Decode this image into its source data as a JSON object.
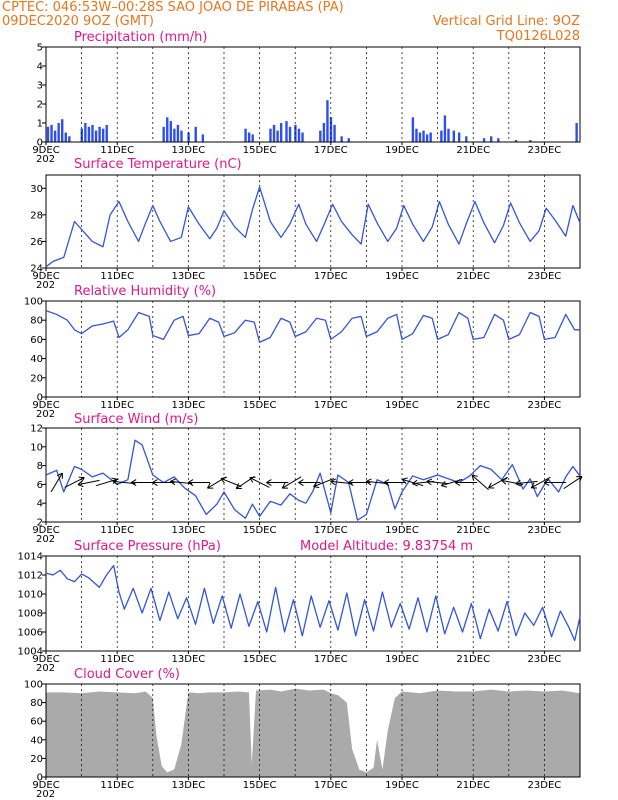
{
  "header": {
    "line1_left": "CPTEC:   046:53W–00:28S   SAO JOAO DE PIRABAS (PA)",
    "line2_left": "09DEC2020 9OZ (GMT)",
    "line2_right": "Vertical Grid Line: 9OZ",
    "line3_right": "TQ0126L028"
  },
  "model_altitude": "Model Altitude:  9.83754  m",
  "x_ticks": [
    "9DEC",
    "11DEC",
    "13DEC",
    "15DEC",
    "17DEC",
    "19DEC",
    "21DEC",
    "23DEC"
  ],
  "x_year_fragment": "202",
  "colors": {
    "line": "#3355dd",
    "bar": "#2d4ff0",
    "cloud": "#aaaaaa",
    "header": "#e8761e",
    "title": "#e0188c"
  },
  "chart_data": [
    {
      "type": "bar",
      "title": "Precipitation  (mm/h)",
      "ylim": [
        0,
        5
      ],
      "yticks": [
        "0",
        "1",
        "2",
        "3",
        "4",
        "5"
      ],
      "x_range_days": [
        9,
        24
      ],
      "values": [
        [
          9.05,
          0.8
        ],
        [
          9.15,
          0.9
        ],
        [
          9.25,
          0.6
        ],
        [
          9.35,
          1.0
        ],
        [
          9.45,
          1.2
        ],
        [
          9.55,
          0.5
        ],
        [
          9.65,
          0.3
        ],
        [
          10.0,
          0.7
        ],
        [
          10.1,
          1.0
        ],
        [
          10.2,
          0.8
        ],
        [
          10.3,
          0.9
        ],
        [
          10.4,
          0.6
        ],
        [
          10.5,
          0.8
        ],
        [
          10.6,
          0.7
        ],
        [
          10.7,
          0.9
        ],
        [
          12.3,
          0.8
        ],
        [
          12.4,
          1.3
        ],
        [
          12.5,
          1.1
        ],
        [
          12.6,
          0.7
        ],
        [
          12.7,
          0.9
        ],
        [
          12.8,
          0.6
        ],
        [
          13.0,
          0.5
        ],
        [
          13.2,
          0.8
        ],
        [
          13.4,
          0.4
        ],
        [
          14.6,
          0.7
        ],
        [
          14.7,
          0.5
        ],
        [
          14.8,
          0.4
        ],
        [
          15.3,
          0.7
        ],
        [
          15.4,
          0.9
        ],
        [
          15.5,
          0.6
        ],
        [
          15.6,
          1.0
        ],
        [
          15.75,
          1.1
        ],
        [
          15.85,
          0.8
        ],
        [
          16.0,
          0.9
        ],
        [
          16.1,
          0.7
        ],
        [
          16.2,
          0.5
        ],
        [
          16.7,
          0.6
        ],
        [
          16.8,
          1.0
        ],
        [
          16.9,
          2.2
        ],
        [
          17.0,
          1.3
        ],
        [
          17.1,
          0.9
        ],
        [
          17.3,
          0.3
        ],
        [
          17.5,
          0.2
        ],
        [
          19.3,
          1.3
        ],
        [
          19.4,
          0.7
        ],
        [
          19.5,
          0.5
        ],
        [
          19.6,
          0.6
        ],
        [
          19.7,
          0.4
        ],
        [
          19.8,
          0.5
        ],
        [
          20.1,
          0.6
        ],
        [
          20.2,
          1.4
        ],
        [
          20.3,
          0.7
        ],
        [
          20.45,
          0.6
        ],
        [
          20.6,
          0.5
        ],
        [
          20.8,
          0.3
        ],
        [
          21.3,
          0.2
        ],
        [
          21.5,
          0.3
        ],
        [
          21.7,
          0.2
        ],
        [
          22.2,
          0.1
        ],
        [
          22.6,
          0.1
        ],
        [
          23.9,
          1.0
        ]
      ]
    },
    {
      "type": "line",
      "title": "Surface Temperature (nC)",
      "ylim": [
        24,
        31
      ],
      "yticks": [
        "24",
        "26",
        "28",
        "30"
      ],
      "x_range_days": [
        9,
        24
      ],
      "series": [
        {
          "x": [
            9.0,
            9.2,
            9.5,
            9.8,
            10.1,
            10.3,
            10.6,
            10.8,
            11.05,
            11.3,
            11.6,
            11.8,
            12.0,
            12.2,
            12.5,
            12.8,
            13.0,
            13.3,
            13.6,
            13.8,
            14.0,
            14.3,
            14.6,
            14.8,
            15.0,
            15.3,
            15.6,
            15.85,
            16.1,
            16.3,
            16.6,
            16.8,
            17.05,
            17.3,
            17.6,
            17.85,
            18.05,
            18.3,
            18.6,
            18.85,
            19.05,
            19.3,
            19.6,
            19.85,
            20.05,
            20.3,
            20.6,
            20.8,
            21.05,
            21.3,
            21.6,
            21.85,
            22.05,
            22.3,
            22.6,
            22.85,
            23.05,
            23.3,
            23.6,
            23.8,
            24.0
          ],
          "y": [
            24.1,
            24.5,
            24.8,
            27.5,
            26.6,
            26.0,
            25.6,
            28.0,
            29.0,
            27.5,
            26.0,
            27.4,
            28.7,
            27.5,
            26.0,
            26.3,
            28.6,
            27.3,
            26.2,
            27.0,
            28.3,
            27.1,
            26.3,
            28.4,
            30.1,
            27.5,
            26.3,
            27.3,
            28.8,
            27.3,
            26.0,
            27.2,
            28.8,
            27.5,
            26.5,
            25.8,
            28.8,
            27.4,
            26.0,
            27.0,
            28.7,
            27.3,
            26.0,
            27.1,
            29.0,
            27.3,
            25.8,
            27.3,
            29.0,
            27.4,
            25.9,
            27.2,
            28.9,
            27.4,
            26.0,
            26.8,
            28.5,
            27.6,
            26.4,
            28.7,
            27.4
          ]
        }
      ]
    },
    {
      "type": "line",
      "title": "Relative Humidity (%)",
      "ylim": [
        0,
        100
      ],
      "yticks": [
        "0",
        "20",
        "40",
        "60",
        "80",
        "100"
      ],
      "x_range_days": [
        9,
        24
      ],
      "series": [
        {
          "x": [
            9.0,
            9.3,
            9.6,
            9.8,
            10.0,
            10.3,
            10.6,
            10.9,
            11.05,
            11.3,
            11.6,
            11.9,
            12.0,
            12.3,
            12.6,
            12.85,
            13.0,
            13.3,
            13.6,
            13.85,
            14.0,
            14.3,
            14.6,
            14.85,
            15.0,
            15.3,
            15.6,
            15.85,
            16.0,
            16.3,
            16.6,
            16.85,
            17.0,
            17.3,
            17.6,
            17.85,
            18.0,
            18.3,
            18.6,
            18.85,
            19.0,
            19.3,
            19.6,
            19.85,
            20.0,
            20.3,
            20.6,
            20.85,
            21.0,
            21.3,
            21.6,
            21.85,
            22.0,
            22.3,
            22.6,
            22.85,
            23.0,
            23.3,
            23.6,
            23.85,
            24.0
          ],
          "y": [
            90,
            86,
            80,
            70,
            66,
            74,
            76,
            79,
            62,
            70,
            88,
            84,
            64,
            60,
            80,
            84,
            64,
            66,
            82,
            78,
            63,
            67,
            80,
            78,
            57,
            62,
            82,
            78,
            63,
            68,
            82,
            80,
            60,
            68,
            82,
            84,
            63,
            68,
            82,
            86,
            60,
            66,
            85,
            82,
            60,
            65,
            88,
            82,
            60,
            62,
            86,
            80,
            60,
            65,
            88,
            84,
            60,
            62,
            86,
            70,
            70
          ]
        }
      ]
    },
    {
      "type": "line",
      "title": "Surface Wind  (m/s)",
      "ylim": [
        2,
        12
      ],
      "yticks": [
        "2",
        "4",
        "6",
        "8",
        "10",
        "12"
      ],
      "x_range_days": [
        9,
        24
      ],
      "series": [
        {
          "x": [
            9.0,
            9.3,
            9.5,
            9.8,
            10.0,
            10.3,
            10.6,
            11.0,
            11.3,
            11.5,
            11.7,
            12.0,
            12.3,
            12.6,
            12.9,
            13.2,
            13.5,
            13.8,
            14.0,
            14.3,
            14.6,
            14.8,
            15.0,
            15.3,
            15.6,
            15.85,
            16.1,
            16.3,
            16.5,
            16.7,
            17.0,
            17.2,
            17.5,
            17.75,
            18.0,
            18.3,
            18.6,
            18.8,
            19.0,
            19.3,
            19.6,
            20.0,
            20.3,
            20.6,
            20.9,
            21.2,
            21.5,
            21.8,
            22.1,
            22.4,
            22.6,
            22.8,
            23.1,
            23.4,
            23.6,
            23.8,
            24.0
          ],
          "y": [
            7.0,
            7.5,
            5.2,
            7.9,
            7.6,
            6.8,
            7.2,
            6.0,
            6.5,
            10.7,
            10.2,
            7.0,
            6.2,
            6.8,
            5.6,
            4.8,
            2.8,
            3.9,
            5.2,
            3.3,
            2.4,
            3.9,
            2.6,
            4.2,
            3.8,
            5.0,
            4.3,
            4.0,
            5.3,
            7.2,
            3.0,
            7.0,
            6.2,
            2.2,
            2.8,
            6.5,
            6.0,
            3.4,
            5.2,
            6.9,
            6.5,
            7.0,
            6.6,
            6.2,
            6.9,
            8.0,
            7.6,
            6.5,
            8.1,
            5.5,
            6.6,
            4.7,
            6.6,
            5.2,
            6.8,
            7.9,
            6.9
          ]
        }
      ],
      "arrows": [
        {
          "day": 9.3,
          "u": 0.6,
          "v": 1.0
        },
        {
          "day": 9.8,
          "u": 1.0,
          "v": 0.5
        },
        {
          "day": 10.2,
          "u": -1.0,
          "v": -0.2
        },
        {
          "day": 10.7,
          "u": 1.0,
          "v": 0.3
        },
        {
          "day": 11.2,
          "u": -1.0,
          "v": 0.1
        },
        {
          "day": 11.7,
          "u": -1.0,
          "v": 0.0
        },
        {
          "day": 12.3,
          "u": -1.0,
          "v": 0.0
        },
        {
          "day": 12.8,
          "u": -1.0,
          "v": 0.1
        },
        {
          "day": 13.3,
          "u": -1.0,
          "v": 0.0
        },
        {
          "day": 13.8,
          "u": -1.0,
          "v": -0.6
        },
        {
          "day": 14.2,
          "u": -1.0,
          "v": 0.4
        },
        {
          "day": 14.6,
          "u": -0.9,
          "v": -0.6
        },
        {
          "day": 15.0,
          "u": -1.0,
          "v": 0.5
        },
        {
          "day": 15.5,
          "u": -1.0,
          "v": 0.0
        },
        {
          "day": 15.9,
          "u": -1.0,
          "v": -0.6
        },
        {
          "day": 16.4,
          "u": -1.0,
          "v": 0.0
        },
        {
          "day": 16.8,
          "u": -1.0,
          "v": -0.4
        },
        {
          "day": 17.3,
          "u": -1.0,
          "v": 0.1
        },
        {
          "day": 17.8,
          "u": -1.0,
          "v": 0.0
        },
        {
          "day": 18.3,
          "u": -1.0,
          "v": 0.1
        },
        {
          "day": 18.8,
          "u": -1.0,
          "v": 0.0
        },
        {
          "day": 19.3,
          "u": -1.0,
          "v": 0.3
        },
        {
          "day": 19.6,
          "u": -1.0,
          "v": -0.1
        },
        {
          "day": 20.0,
          "u": -1.0,
          "v": 0.1
        },
        {
          "day": 20.4,
          "u": -1.0,
          "v": -0.3
        },
        {
          "day": 20.8,
          "u": -1.0,
          "v": 0.0
        },
        {
          "day": 21.2,
          "u": -0.8,
          "v": 0.7
        },
        {
          "day": 21.7,
          "u": -0.9,
          "v": -0.5
        },
        {
          "day": 22.1,
          "u": -1.0,
          "v": 0.2
        },
        {
          "day": 22.5,
          "u": -1.0,
          "v": -0.1
        },
        {
          "day": 22.9,
          "u": -0.9,
          "v": -0.5
        },
        {
          "day": 23.3,
          "u": -1.0,
          "v": 0.0
        },
        {
          "day": 23.8,
          "u": 0.9,
          "v": 0.6
        }
      ]
    },
    {
      "type": "line",
      "title": "Surface Pressure (hPa)",
      "ylim": [
        1004,
        1014
      ],
      "yticks": [
        "1004",
        "1006",
        "1008",
        "1010",
        "1012",
        "1014"
      ],
      "x_range_days": [
        9,
        24
      ],
      "series": [
        {
          "x": [
            9.0,
            9.2,
            9.4,
            9.6,
            9.8,
            10.0,
            10.2,
            10.5,
            10.7,
            10.9,
            11.05,
            11.2,
            11.45,
            11.7,
            11.95,
            12.2,
            12.45,
            12.7,
            12.95,
            13.2,
            13.45,
            13.7,
            13.95,
            14.2,
            14.45,
            14.7,
            14.95,
            15.2,
            15.45,
            15.7,
            15.95,
            16.2,
            16.45,
            16.7,
            16.95,
            17.2,
            17.45,
            17.7,
            17.95,
            18.2,
            18.45,
            18.7,
            18.95,
            19.2,
            19.45,
            19.7,
            19.95,
            20.2,
            20.45,
            20.7,
            20.95,
            21.2,
            21.45,
            21.7,
            21.95,
            22.2,
            22.45,
            22.7,
            22.95,
            23.2,
            23.45,
            23.7,
            23.85,
            24.0
          ],
          "y": [
            1012.2,
            1012.0,
            1012.5,
            1011.6,
            1011.3,
            1012.1,
            1011.7,
            1010.7,
            1012.0,
            1013.0,
            1010.2,
            1008.4,
            1010.6,
            1008.0,
            1010.6,
            1007.2,
            1010.2,
            1007.4,
            1009.6,
            1006.8,
            1010.6,
            1006.9,
            1009.8,
            1006.4,
            1010.0,
            1006.6,
            1009.2,
            1006.0,
            1010.7,
            1006.0,
            1009.4,
            1005.6,
            1009.8,
            1006.5,
            1009.3,
            1006.2,
            1010.1,
            1005.6,
            1009.4,
            1006.1,
            1010.2,
            1006.5,
            1009.0,
            1006.3,
            1009.6,
            1006.0,
            1009.8,
            1005.8,
            1008.6,
            1006.0,
            1009.0,
            1005.3,
            1008.4,
            1006.1,
            1009.2,
            1005.6,
            1008.0,
            1006.7,
            1008.6,
            1005.5,
            1008.2,
            1006.4,
            1005.1,
            1007.6
          ]
        }
      ]
    },
    {
      "type": "area",
      "title": "Cloud Cover (%)",
      "ylim": [
        0,
        100
      ],
      "yticks": [
        "0",
        "20",
        "40",
        "60",
        "80",
        "100"
      ],
      "x_range_days": [
        9,
        24
      ],
      "series": [
        {
          "x": [
            9.0,
            9.5,
            10.0,
            10.5,
            11.0,
            11.5,
            11.8,
            12.0,
            12.1,
            12.25,
            12.4,
            12.6,
            12.8,
            13.0,
            13.3,
            13.6,
            14.0,
            14.4,
            14.7,
            14.78,
            14.9,
            15.3,
            15.6,
            16.0,
            16.4,
            16.8,
            17.0,
            17.2,
            17.45,
            17.6,
            17.8,
            18.0,
            18.2,
            18.3,
            18.45,
            18.6,
            18.8,
            19.0,
            19.5,
            20.0,
            20.5,
            21.0,
            21.5,
            22.0,
            22.5,
            23.0,
            23.5,
            24.0
          ],
          "y": [
            91,
            91,
            90,
            92,
            91,
            90,
            92,
            85,
            45,
            12,
            5,
            8,
            35,
            91,
            90,
            91,
            91,
            92,
            91,
            14,
            93,
            94,
            92,
            95,
            93,
            94,
            90,
            88,
            80,
            30,
            8,
            5,
            10,
            40,
            8,
            50,
            85,
            92,
            90,
            93,
            92,
            92,
            94,
            92,
            93,
            92,
            93,
            90
          ]
        }
      ]
    }
  ]
}
